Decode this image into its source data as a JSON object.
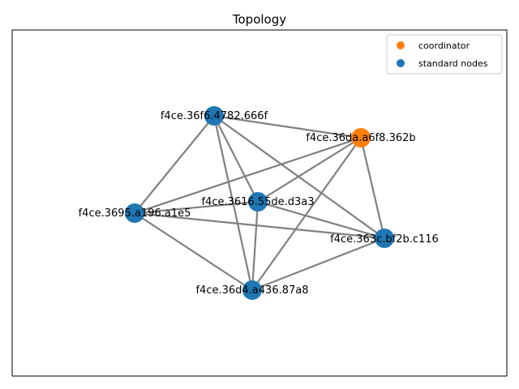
{
  "title": "Topology",
  "colors": {
    "coordinator": "#ff7f0e",
    "standard": "#1f77b4",
    "edge": "#808080",
    "frame": "#000000"
  },
  "legend": {
    "position": "top-right",
    "entries": [
      {
        "label": "coordinator",
        "color": "#ff7f0e"
      },
      {
        "label": "standard nodes",
        "color": "#1f77b4"
      }
    ]
  },
  "nodes": [
    {
      "id": "n1",
      "label": "f4ce.36f6.4782.666f",
      "role": "standard"
    },
    {
      "id": "n2",
      "label": "f4ce.36da.a6f8.362b",
      "role": "coordinator"
    },
    {
      "id": "n3",
      "label": "f4ce.3616.55de.d3a3",
      "role": "standard"
    },
    {
      "id": "n4",
      "label": "f4ce.3695.a196.a1e5",
      "role": "standard"
    },
    {
      "id": "n5",
      "label": "f4ce.363c.bf2b.c116",
      "role": "standard"
    },
    {
      "id": "n6",
      "label": "f4ce.36d4.a436.87a8",
      "role": "standard"
    }
  ],
  "edges": [
    [
      "n1",
      "n2"
    ],
    [
      "n1",
      "n3"
    ],
    [
      "n1",
      "n4"
    ],
    [
      "n1",
      "n5"
    ],
    [
      "n1",
      "n6"
    ],
    [
      "n2",
      "n3"
    ],
    [
      "n2",
      "n4"
    ],
    [
      "n2",
      "n5"
    ],
    [
      "n2",
      "n6"
    ],
    [
      "n3",
      "n4"
    ],
    [
      "n3",
      "n5"
    ],
    [
      "n3",
      "n6"
    ],
    [
      "n4",
      "n5"
    ],
    [
      "n4",
      "n6"
    ],
    [
      "n5",
      "n6"
    ]
  ]
}
